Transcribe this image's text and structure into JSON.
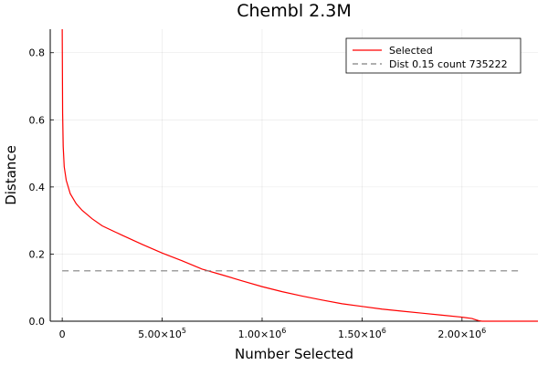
{
  "chart_data": {
    "type": "line",
    "title": "Chembl 2.3M",
    "xlabel": "Number Selected",
    "ylabel": "Distance",
    "xlim": [
      -60000,
      2380000
    ],
    "ylim": [
      0,
      0.87
    ],
    "grid": true,
    "legend_position": "top-right",
    "x_ticks": [
      {
        "value": 0,
        "mantissa": "0",
        "exp": ""
      },
      {
        "value": 500000,
        "mantissa": "5.00×10",
        "exp": "5"
      },
      {
        "value": 1000000,
        "mantissa": "1.00×10",
        "exp": "6"
      },
      {
        "value": 1500000,
        "mantissa": "1.50×10",
        "exp": "6"
      },
      {
        "value": 2000000,
        "mantissa": "2.00×10",
        "exp": "6"
      }
    ],
    "y_ticks": [
      {
        "value": 0.0,
        "label": "0.0"
      },
      {
        "value": 0.2,
        "label": "0.2"
      },
      {
        "value": 0.4,
        "label": "0.4"
      },
      {
        "value": 0.6,
        "label": "0.6"
      },
      {
        "value": 0.8,
        "label": "0.8"
      }
    ],
    "series": [
      {
        "name": "Selected",
        "color": "#ff0000",
        "style": "solid",
        "x": [
          0,
          2000,
          5000,
          10000,
          20000,
          40000,
          70000,
          100000,
          150000,
          200000,
          300000,
          400000,
          500000,
          600000,
          700000,
          800000,
          900000,
          1000000,
          1100000,
          1200000,
          1300000,
          1400000,
          1500000,
          1600000,
          1700000,
          1800000,
          1900000,
          2000000,
          2050000,
          2070000,
          2085000,
          2100000,
          2200000,
          2380000
        ],
        "y": [
          0.87,
          0.62,
          0.52,
          0.46,
          0.42,
          0.38,
          0.35,
          0.33,
          0.305,
          0.284,
          0.256,
          0.229,
          0.203,
          0.18,
          0.155,
          0.138,
          0.12,
          0.103,
          0.088,
          0.075,
          0.063,
          0.052,
          0.044,
          0.036,
          0.03,
          0.024,
          0.018,
          0.012,
          0.008,
          0.004,
          0.0015,
          0.0,
          0.0,
          0.0
        ]
      },
      {
        "name": "Dist 0.15 count 735222",
        "color": "#808080",
        "style": "dashed",
        "x": [
          0,
          2300000
        ],
        "y": [
          0.15,
          0.15
        ]
      }
    ]
  }
}
